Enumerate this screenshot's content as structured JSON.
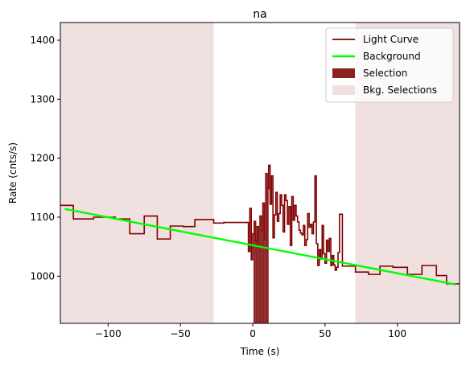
{
  "chart_data": {
    "type": "line",
    "title": "na",
    "xlabel": "Time (s)",
    "ylabel": "Rate (cnts/s)",
    "xlim": [
      -133,
      143
    ],
    "ylim": [
      920,
      1430
    ],
    "xticks": [
      -100,
      -50,
      0,
      50,
      100
    ],
    "yticks": [
      1000,
      1100,
      1200,
      1300,
      1400
    ],
    "grid": false,
    "legend_position": "top-right",
    "legend": [
      {
        "name": "Light Curve",
        "kind": "line",
        "color": "#800000"
      },
      {
        "name": "Background",
        "kind": "line",
        "color": "#00ff00"
      },
      {
        "name": "Selection",
        "kind": "patch",
        "color": "#8b2222"
      },
      {
        "name": "Bkg. Selections",
        "kind": "patch",
        "color": "#f0e0e0"
      }
    ],
    "bkg_selections": [
      [
        -133,
        -27
      ],
      [
        71,
        143
      ]
    ],
    "selection": [
      0.5,
      11
    ],
    "background_line": {
      "x": [
        -130,
        140
      ],
      "y": [
        1114,
        986
      ]
    },
    "light_curve": {
      "color": "#800000",
      "x": [
        -133,
        -124,
        -110,
        -95,
        -85,
        -75,
        -66,
        -57,
        -48,
        -40,
        -27,
        -20,
        -10,
        -3,
        -2,
        -1,
        0,
        1,
        2,
        3,
        4,
        5,
        6,
        7,
        8,
        9,
        10,
        11,
        12,
        13,
        14,
        15,
        16,
        17,
        18,
        19,
        20,
        21,
        22,
        23,
        24,
        25,
        26,
        27,
        28,
        29,
        30,
        31,
        32,
        33,
        34,
        35,
        36,
        37,
        38,
        39,
        40,
        41,
        42,
        43,
        44,
        45,
        46,
        47,
        48,
        49,
        50,
        51,
        52,
        53,
        54,
        55,
        56,
        57,
        58,
        59,
        60,
        62,
        71,
        80,
        88,
        97,
        107,
        117,
        127,
        134,
        143
      ],
      "y": [
        1120,
        1097,
        1100,
        1097,
        1072,
        1102,
        1063,
        1085,
        1084,
        1096,
        1090,
        1091,
        1091,
        1042,
        1115,
        1028,
        1072,
        1093,
        1059,
        1084,
        1050,
        1102,
        1076,
        1124,
        1062,
        1174,
        1148,
        1188,
        1122,
        1170,
        1065,
        1104,
        1142,
        1093,
        1106,
        1138,
        1120,
        1075,
        1138,
        1128,
        1088,
        1118,
        1052,
        1135,
        1095,
        1120,
        1102,
        1092,
        1078,
        1073,
        1070,
        1086,
        1052,
        1062,
        1106,
        1083,
        1088,
        1072,
        1092,
        1170,
        1055,
        1018,
        1045,
        1029,
        1086,
        1038,
        1022,
        1061,
        1042,
        1064,
        1018,
        1035,
        1019,
        1010,
        1015,
        1040,
        1105,
        1017,
        1007,
        1003,
        1017,
        1015,
        1003,
        1018,
        1001,
        987,
        970
      ]
    }
  }
}
